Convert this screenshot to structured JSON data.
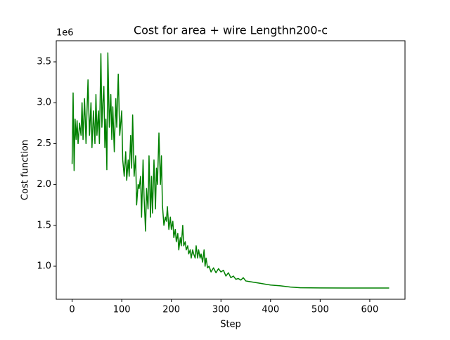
{
  "chart_data": {
    "type": "line",
    "title": "Cost for area + wire Lengthn200-c",
    "x_label": "Step",
    "y_label": "Cost function",
    "offset_text": "1e6",
    "xlim": [
      -32,
      671
    ],
    "ylim": [
      596000,
      3758000
    ],
    "xticks": [
      0,
      100,
      200,
      300,
      400,
      500,
      600
    ],
    "yticks": [
      {
        "value": 1000000,
        "label": "1.0"
      },
      {
        "value": 1500000,
        "label": "1.5"
      },
      {
        "value": 2000000,
        "label": "2.0"
      },
      {
        "value": 2500000,
        "label": "2.5"
      },
      {
        "value": 3000000,
        "label": "3.0"
      },
      {
        "value": 3500000,
        "label": "3.5"
      }
    ],
    "x": [
      0,
      2,
      4,
      6,
      8,
      10,
      12,
      15,
      18,
      20,
      22,
      25,
      28,
      30,
      32,
      35,
      38,
      40,
      43,
      46,
      48,
      50,
      53,
      55,
      58,
      60,
      62,
      64,
      66,
      68,
      70,
      72,
      75,
      78,
      80,
      82,
      85,
      88,
      90,
      93,
      96,
      98,
      100,
      102,
      105,
      108,
      110,
      113,
      115,
      118,
      120,
      122,
      125,
      128,
      130,
      133,
      135,
      138,
      140,
      143,
      145,
      148,
      150,
      153,
      155,
      158,
      160,
      162,
      165,
      168,
      170,
      172,
      175,
      178,
      180,
      182,
      185,
      188,
      190,
      192,
      195,
      198,
      200,
      203,
      205,
      208,
      210,
      213,
      215,
      218,
      220,
      223,
      225,
      228,
      230,
      233,
      235,
      238,
      240,
      243,
      245,
      248,
      250,
      253,
      255,
      258,
      260,
      263,
      266,
      268,
      270,
      273,
      276,
      280,
      285,
      290,
      295,
      300,
      305,
      310,
      315,
      320,
      325,
      330,
      335,
      340,
      345,
      350,
      360,
      370,
      380,
      390,
      400,
      420,
      440,
      460,
      500,
      550,
      600,
      639
    ],
    "series": [
      {
        "name": "Cost",
        "color": "#008000",
        "values": [
          2250000,
          3120000,
          2170000,
          2800000,
          2550000,
          2780000,
          2500000,
          2750000,
          2600000,
          3000000,
          2550000,
          3050000,
          2500000,
          2900000,
          3280000,
          2600000,
          3000000,
          2450000,
          2900000,
          2500000,
          3100000,
          2600000,
          2900000,
          2500000,
          3600000,
          2700000,
          3000000,
          3200000,
          2450000,
          2800000,
          2180000,
          3610000,
          2700000,
          3100000,
          2550000,
          2950000,
          2400000,
          3050000,
          2700000,
          3350000,
          2600000,
          2750000,
          2900000,
          2300000,
          2100000,
          2400000,
          2050000,
          2300000,
          2100000,
          2600000,
          2200000,
          2850000,
          2100000,
          2350000,
          1750000,
          2000000,
          1950000,
          2100000,
          1600000,
          2300000,
          1850000,
          1430000,
          1950000,
          1700000,
          2350000,
          1600000,
          2100000,
          1650000,
          2300000,
          1700000,
          2200000,
          2000000,
          2630000,
          2000000,
          2350000,
          1750000,
          1500000,
          1600000,
          1550000,
          1730000,
          1450000,
          1600000,
          1450000,
          1550000,
          1350000,
          1450000,
          1300000,
          1400000,
          1200000,
          1350000,
          1250000,
          1500000,
          1250000,
          1300000,
          1200000,
          1250000,
          1150000,
          1200000,
          1100000,
          1200000,
          1150000,
          1100000,
          1250000,
          1100000,
          1200000,
          1100000,
          1150000,
          1050000,
          1200000,
          1000000,
          1100000,
          980000,
          1000000,
          930000,
          980000,
          920000,
          970000,
          930000,
          950000,
          880000,
          920000,
          860000,
          880000,
          840000,
          850000,
          830000,
          860000,
          820000,
          810000,
          800000,
          790000,
          780000,
          770000,
          760000,
          745000,
          737000,
          735000,
          734000,
          733000,
          733000
        ]
      }
    ]
  }
}
